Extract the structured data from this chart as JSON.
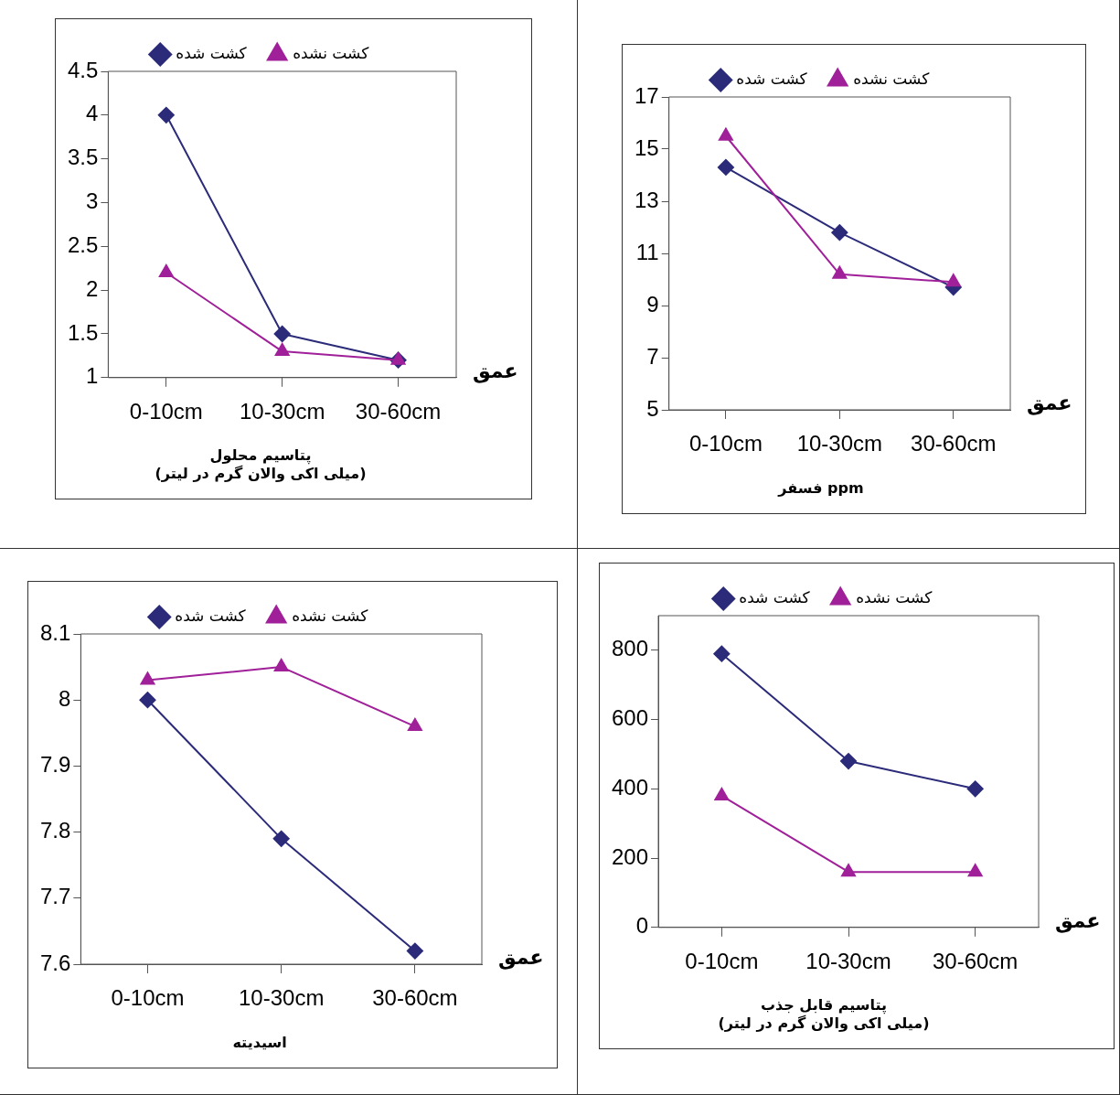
{
  "chart_data": [
    {
      "type": "line",
      "title": "پتاسیم محلول\n(میلی اکی والان گرم در لیتر)",
      "xlabel": "عمق",
      "categories": [
        "0-10cm",
        "10-30cm",
        "30-60cm"
      ],
      "ylim": [
        1,
        4.5
      ],
      "yticks": [
        1,
        1.5,
        2,
        2.5,
        3,
        3.5,
        4,
        4.5
      ],
      "grid": false,
      "legend": "top",
      "series": [
        {
          "name": "کشت شده",
          "color": "#2b2b7a",
          "marker": "diamond",
          "values": [
            4,
            1.5,
            1.2
          ]
        },
        {
          "name": "کشت نشده",
          "color": "#a0209a",
          "marker": "triangle",
          "values": [
            2.2,
            1.3,
            1.2
          ]
        }
      ]
    },
    {
      "type": "line",
      "title": "فسفر ppm",
      "xlabel": "عمق",
      "categories": [
        "0-10cm",
        "10-30cm",
        "30-60cm"
      ],
      "ylim": [
        5,
        17
      ],
      "yticks": [
        5,
        7,
        9,
        11,
        13,
        15,
        17
      ],
      "grid": false,
      "legend": "top",
      "series": [
        {
          "name": "کشت شده",
          "color": "#2b2b7a",
          "marker": "diamond",
          "values": [
            14.3,
            11.8,
            9.7
          ]
        },
        {
          "name": "کشت نشده",
          "color": "#a0209a",
          "marker": "triangle",
          "values": [
            15.5,
            10.2,
            9.9
          ]
        }
      ]
    },
    {
      "type": "line",
      "title": "اسیدیته",
      "xlabel": "عمق",
      "categories": [
        "0-10cm",
        "10-30cm",
        "30-60cm"
      ],
      "ylim": [
        7.6,
        8.1
      ],
      "yticks": [
        7.6,
        7.7,
        7.8,
        7.9,
        8,
        8.1
      ],
      "grid": false,
      "legend": "top",
      "series": [
        {
          "name": "کشت شده",
          "color": "#2b2b7a",
          "marker": "diamond",
          "values": [
            8.0,
            7.79,
            7.62
          ]
        },
        {
          "name": "کشت نشده",
          "color": "#a0209a",
          "marker": "triangle",
          "values": [
            8.03,
            8.05,
            7.96
          ]
        }
      ]
    },
    {
      "type": "line",
      "title": "پتاسیم قابل جذب\n(میلی اکی والان گرم در لیتر)",
      "xlabel": "عمق",
      "categories": [
        "0-10cm",
        "10-30cm",
        "30-60cm"
      ],
      "ylim": [
        0,
        900
      ],
      "yticks": [
        0,
        200,
        400,
        600,
        800
      ],
      "grid": false,
      "legend": "top",
      "series": [
        {
          "name": "کشت شده",
          "color": "#2b2b7a",
          "marker": "diamond",
          "values": [
            790,
            480,
            400
          ]
        },
        {
          "name": "کشت نشده",
          "color": "#a0209a",
          "marker": "triangle",
          "values": [
            380,
            160,
            160
          ]
        }
      ]
    }
  ]
}
